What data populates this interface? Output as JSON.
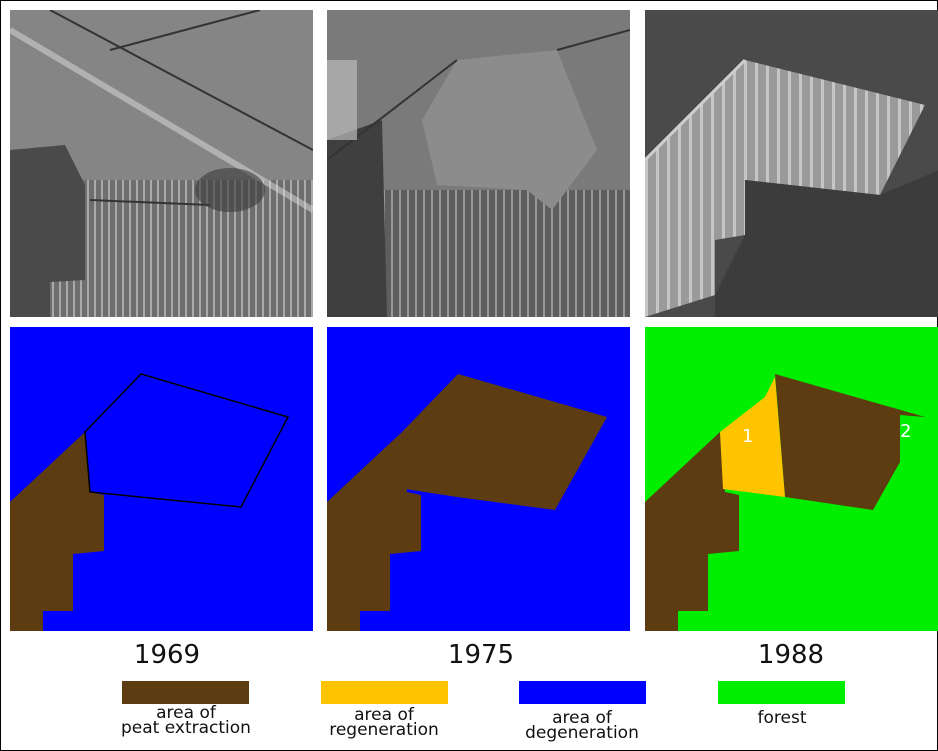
{
  "years": [
    "1969",
    "1975",
    "1988"
  ],
  "legend": [
    {
      "line1": "area of",
      "line2": "peat extraction",
      "color": "#5c3c10"
    },
    {
      "line1": "area of",
      "line2": "regeneration",
      "color": "#ffc400"
    },
    {
      "line1": "area of",
      "line2": "degeneration",
      "color": "#0000ff"
    },
    {
      "line1": "forest",
      "line2": "",
      "color": "#00ee00"
    }
  ],
  "map_labels": {
    "region_1": "1",
    "region_2": "2"
  },
  "colors": {
    "peat": "#5c3c10",
    "regeneration": "#ffc400",
    "degeneration": "#0000ff",
    "forest": "#00ee00"
  }
}
